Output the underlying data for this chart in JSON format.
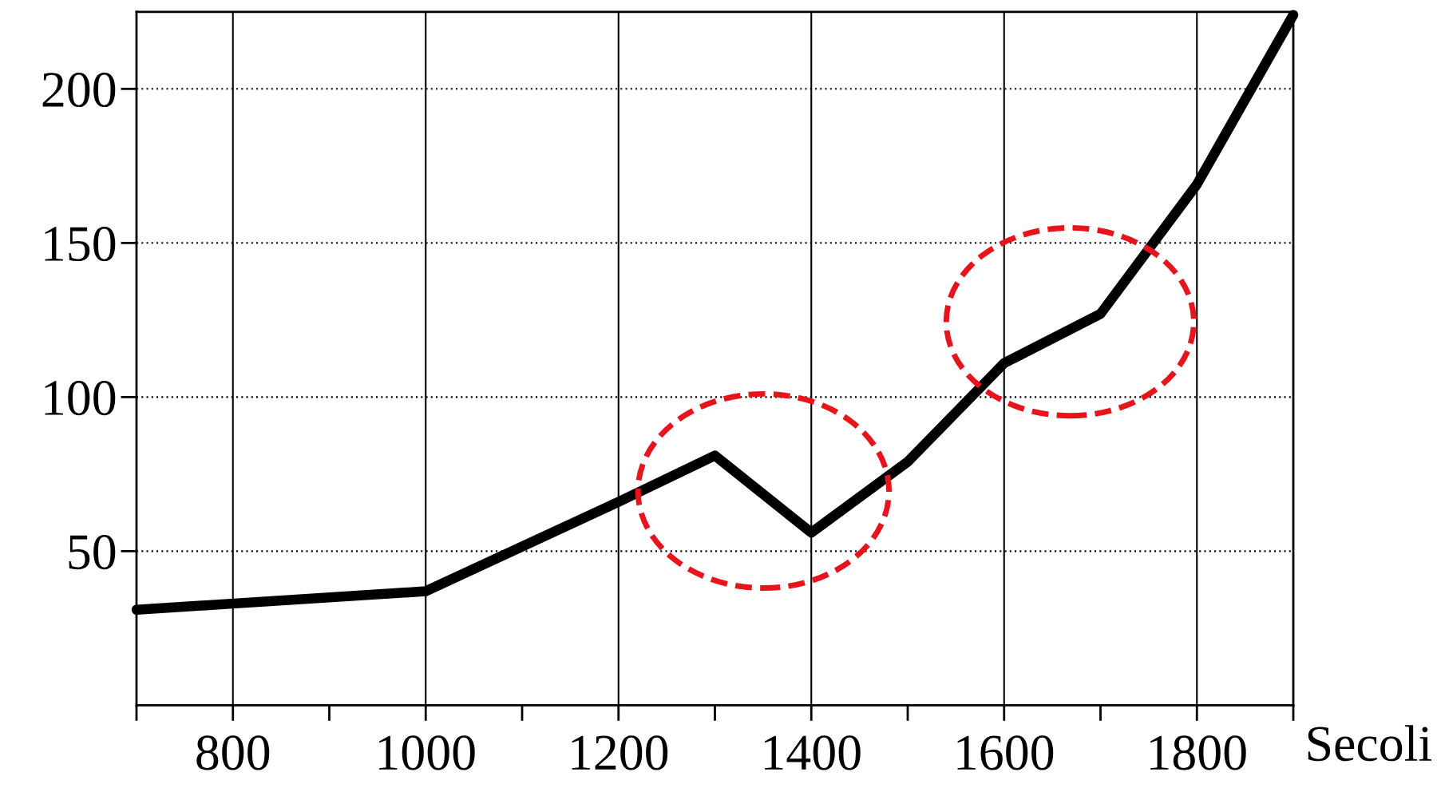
{
  "chart_data": {
    "type": "line",
    "xlabel": "Secoli",
    "x": [
      700,
      1000,
      1200,
      1300,
      1400,
      1500,
      1600,
      1700,
      1800,
      1900
    ],
    "series": [
      {
        "color": "#000000",
        "values": [
          31,
          37,
          66,
          81,
          56,
          79,
          111,
          127,
          169,
          224
        ]
      }
    ],
    "xlim": [
      700,
      1900
    ],
    "xticks": [
      800,
      1000,
      1200,
      1400,
      1600,
      1800
    ],
    "ylim": [
      0,
      225
    ],
    "yticks": [
      50,
      100,
      150,
      200
    ],
    "grid": true,
    "line_style": "solid"
  }
}
